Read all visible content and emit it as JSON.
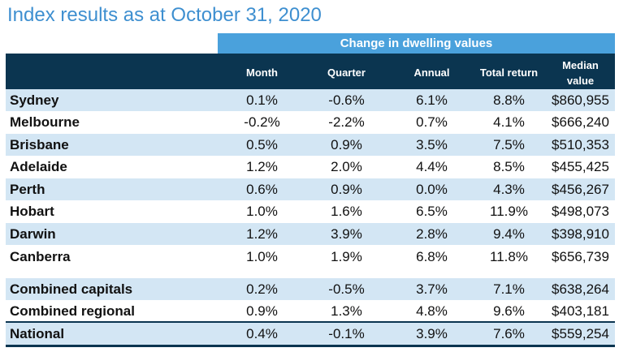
{
  "title": "Index results as at October 31, 2020",
  "band_label": "Change in dwelling values",
  "columns": {
    "month": "Month",
    "quarter": "Quarter",
    "annual": "Annual",
    "total_return": "Total return",
    "median_line1": "Median",
    "median_line2": "value"
  },
  "rows": [
    {
      "name": "Sydney",
      "month": "0.1%",
      "quarter": "-0.6%",
      "annual": "6.1%",
      "total": "8.8%",
      "median": "$860,955"
    },
    {
      "name": "Melbourne",
      "month": "-0.2%",
      "quarter": "-2.2%",
      "annual": "0.7%",
      "total": "4.1%",
      "median": "$666,240"
    },
    {
      "name": "Brisbane",
      "month": "0.5%",
      "quarter": "0.9%",
      "annual": "3.5%",
      "total": "7.5%",
      "median": "$510,353"
    },
    {
      "name": "Adelaide",
      "month": "1.2%",
      "quarter": "2.0%",
      "annual": "4.4%",
      "total": "8.5%",
      "median": "$455,425"
    },
    {
      "name": "Perth",
      "month": "0.6%",
      "quarter": "0.9%",
      "annual": "0.0%",
      "total": "4.3%",
      "median": "$456,267"
    },
    {
      "name": "Hobart",
      "month": "1.0%",
      "quarter": "1.6%",
      "annual": "6.5%",
      "total": "11.9%",
      "median": "$498,073"
    },
    {
      "name": "Darwin",
      "month": "1.2%",
      "quarter": "3.9%",
      "annual": "2.8%",
      "total": "9.4%",
      "median": "$398,910"
    },
    {
      "name": "Canberra",
      "month": "1.0%",
      "quarter": "1.9%",
      "annual": "6.8%",
      "total": "11.8%",
      "median": "$656,739"
    },
    {
      "name": "Combined capitals",
      "month": "0.2%",
      "quarter": "-0.5%",
      "annual": "3.7%",
      "total": "7.1%",
      "median": "$638,264"
    },
    {
      "name": "Combined regional",
      "month": "0.9%",
      "quarter": "1.3%",
      "annual": "4.8%",
      "total": "9.6%",
      "median": "$403,181"
    },
    {
      "name": "National",
      "month": "0.4%",
      "quarter": "-0.1%",
      "annual": "3.9%",
      "total": "7.6%",
      "median": "$559,254"
    }
  ],
  "colors": {
    "title": "#3e8fd0",
    "band": "#4aa1dc",
    "header": "#0b3550",
    "shade": "#d3e6f4"
  }
}
